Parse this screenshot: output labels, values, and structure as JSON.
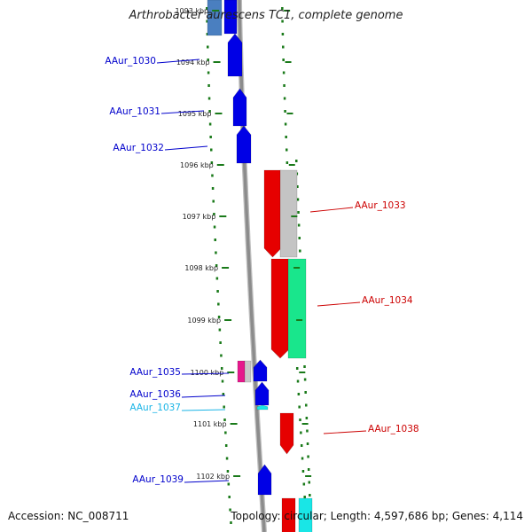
{
  "title": "Arthrobacter aurescens TC1, complete genome",
  "accession": "Accession: NC_008711",
  "topology": "Topology: circular; Length: 4,597,686 bp; Genes: 4,114",
  "colors": {
    "backbone": "#8c8c8c",
    "dots": "#1a7a1a",
    "forward_gene": "#0000e6",
    "reverse_gene": "#e60000",
    "forward_label": "#0000cc",
    "reverse_label": "#cc0000",
    "alt_gene": "#19e6e6"
  },
  "scale_labels": [
    "1093 kbp",
    "1094 kbp",
    "1095 kbp",
    "1096 kbp",
    "1097 kbp",
    "1098 kbp",
    "1099 kbp",
    "1100 kbp",
    "1101 kbp",
    "1102 kbp"
  ],
  "gene_labels": [
    {
      "text": "AAur_1030",
      "side": "left",
      "color": "#0000cc"
    },
    {
      "text": "AAur_1031",
      "side": "left",
      "color": "#0000cc"
    },
    {
      "text": "AAur_1032",
      "side": "left",
      "color": "#0000cc"
    },
    {
      "text": "AAur_1033",
      "side": "right",
      "color": "#cc0000"
    },
    {
      "text": "AAur_1034",
      "side": "right",
      "color": "#cc0000"
    },
    {
      "text": "AAur_1035",
      "side": "left",
      "color": "#0000cc"
    },
    {
      "text": "AAur_1036",
      "side": "left",
      "color": "#0000cc"
    },
    {
      "text": "AAur_1037",
      "side": "left",
      "color": "#19b4e6"
    },
    {
      "text": "AAur_1038",
      "side": "right",
      "color": "#cc0000"
    },
    {
      "text": "AAur_1039",
      "side": "left",
      "color": "#0000cc"
    }
  ]
}
